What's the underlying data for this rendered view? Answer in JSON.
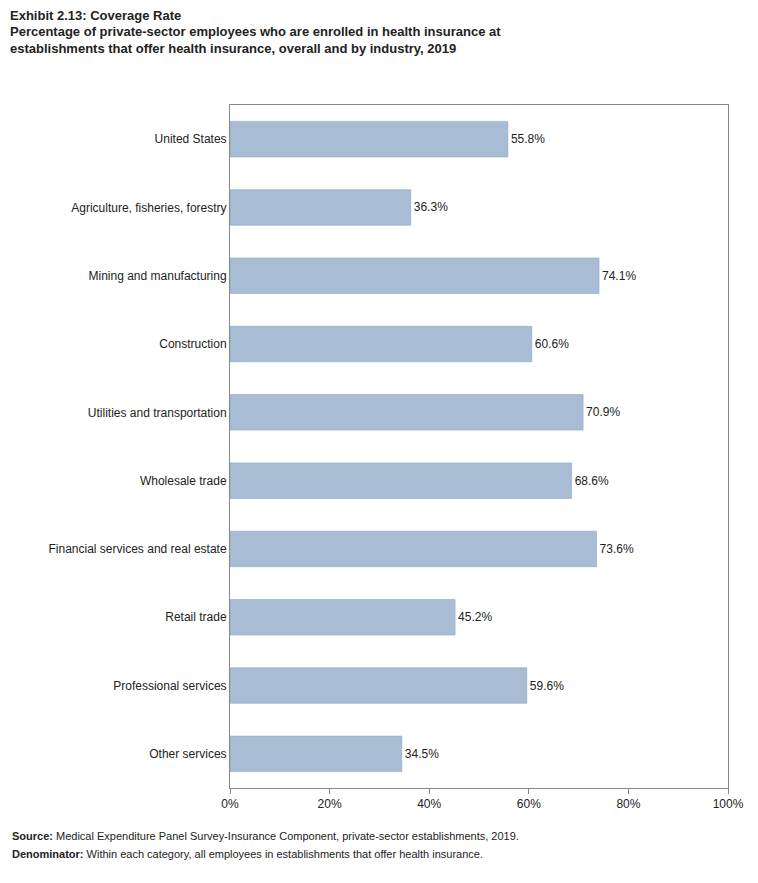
{
  "chart_data": {
    "type": "bar",
    "orientation": "horizontal",
    "title": "Exhibit 2.13: Coverage Rate",
    "subtitle": "Percentage of private-sector employees who are enrolled in health insurance at\nestablishments that offer health insurance, overall and by industry, 2019",
    "categories": [
      "United States",
      "Agriculture, fisheries, forestry",
      "Mining and manufacturing",
      "Construction",
      "Utilities and transportation",
      "Wholesale trade",
      "Financial services and real estate",
      "Retail trade",
      "Professional services",
      "Other services"
    ],
    "values": [
      55.8,
      36.3,
      74.1,
      60.6,
      70.9,
      68.6,
      73.6,
      45.2,
      59.6,
      34.5
    ],
    "value_labels": [
      "55.8%",
      "36.3%",
      "74.1%",
      "60.6%",
      "70.9%",
      "68.6%",
      "73.6%",
      "45.2%",
      "59.6%",
      "34.5%"
    ],
    "data_labels": true,
    "color": "#a8bcd4",
    "xlim": [
      0,
      100
    ],
    "xticks": [
      {
        "value": 0,
        "label": "0%"
      },
      {
        "value": 20,
        "label": "20%"
      },
      {
        "value": 40,
        "label": "40%"
      },
      {
        "value": 60,
        "label": "60%"
      },
      {
        "value": 80,
        "label": "80%"
      },
      {
        "value": 100,
        "label": "100%"
      }
    ],
    "grid": false,
    "annotations": [
      "Source: Medical Expenditure Panel Survey-Insurance Component, private-sector establishments, 2019.",
      "Denominator: Within each category, all employees in establishments that offer health insurance."
    ]
  }
}
